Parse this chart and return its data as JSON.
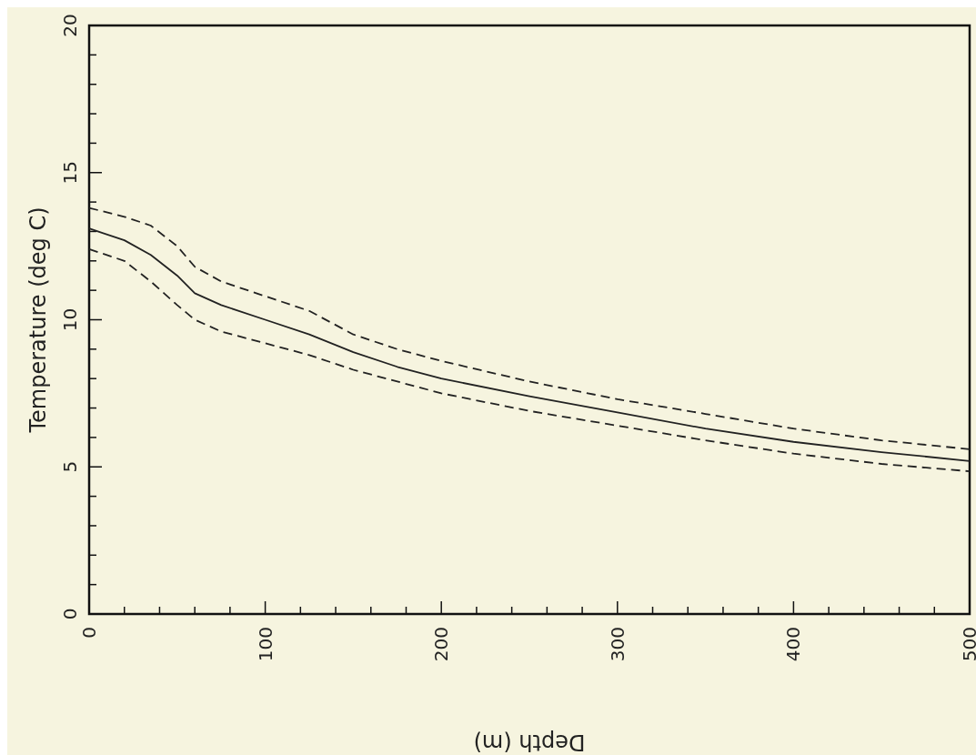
{
  "chart_data": {
    "type": "line",
    "xlabel": "Depth (m)",
    "ylabel": "Temperature (deg C)",
    "xlim": [
      0,
      500
    ],
    "ylim": [
      0,
      20
    ],
    "xticks": [
      0,
      {
        "value": 20,
        "label": null
      },
      {
        "value": 40,
        "label": null
      },
      {
        "value": 60,
        "label": null
      },
      {
        "value": 80,
        "label": null
      },
      100,
      {
        "value": 120,
        "label": null
      },
      {
        "value": 140,
        "label": null
      },
      {
        "value": 160,
        "label": null
      },
      {
        "value": 180,
        "label": null
      },
      200,
      {
        "value": 220,
        "label": null
      },
      {
        "value": 240,
        "label": null
      },
      {
        "value": 260,
        "label": null
      },
      {
        "value": 280,
        "label": null
      },
      300,
      {
        "value": 320,
        "label": null
      },
      {
        "value": 340,
        "label": null
      },
      {
        "value": 360,
        "label": null
      },
      {
        "value": 380,
        "label": null
      },
      400,
      {
        "value": 420,
        "label": null
      },
      {
        "value": 440,
        "label": null
      },
      {
        "value": 460,
        "label": null
      },
      {
        "value": 480,
        "label": null
      },
      500
    ],
    "yticks": [
      0,
      {
        "value": 1,
        "label": null
      },
      {
        "value": 2,
        "label": null
      },
      {
        "value": 3,
        "label": null
      },
      {
        "value": 4,
        "label": null
      },
      5,
      {
        "value": 6,
        "label": null
      },
      {
        "value": 7,
        "label": null
      },
      {
        "value": 8,
        "label": null
      },
      {
        "value": 9,
        "label": null
      },
      10,
      {
        "value": 11,
        "label": null
      },
      {
        "value": 12,
        "label": null
      },
      {
        "value": 13,
        "label": null
      },
      {
        "value": 14,
        "label": null
      },
      15,
      {
        "value": 16,
        "label": null
      },
      {
        "value": 17,
        "label": null
      },
      {
        "value": 18,
        "label": null
      },
      {
        "value": 19,
        "label": null
      },
      20
    ],
    "x": [
      0,
      20,
      35,
      50,
      60,
      75,
      100,
      125,
      150,
      175,
      200,
      250,
      300,
      350,
      400,
      450,
      500
    ],
    "series": [
      {
        "color": "#222222",
        "line_style": "solid",
        "values": [
          13.1,
          12.7,
          12.2,
          11.5,
          10.9,
          10.5,
          10.0,
          9.5,
          8.9,
          8.4,
          8.0,
          7.4,
          6.85,
          6.3,
          5.85,
          5.5,
          5.2
        ]
      },
      {
        "color": "#222222",
        "line_style": "dashed",
        "values": [
          13.8,
          13.5,
          13.2,
          12.5,
          11.8,
          11.3,
          10.8,
          10.3,
          9.5,
          9.0,
          8.6,
          7.9,
          7.3,
          6.8,
          6.3,
          5.9,
          5.6
        ]
      },
      {
        "color": "#222222",
        "line_style": "dashed",
        "values": [
          12.4,
          12.0,
          11.3,
          10.5,
          10.0,
          9.6,
          9.2,
          8.8,
          8.3,
          7.9,
          7.5,
          6.9,
          6.4,
          5.9,
          5.45,
          5.1,
          4.85
        ]
      }
    ]
  }
}
